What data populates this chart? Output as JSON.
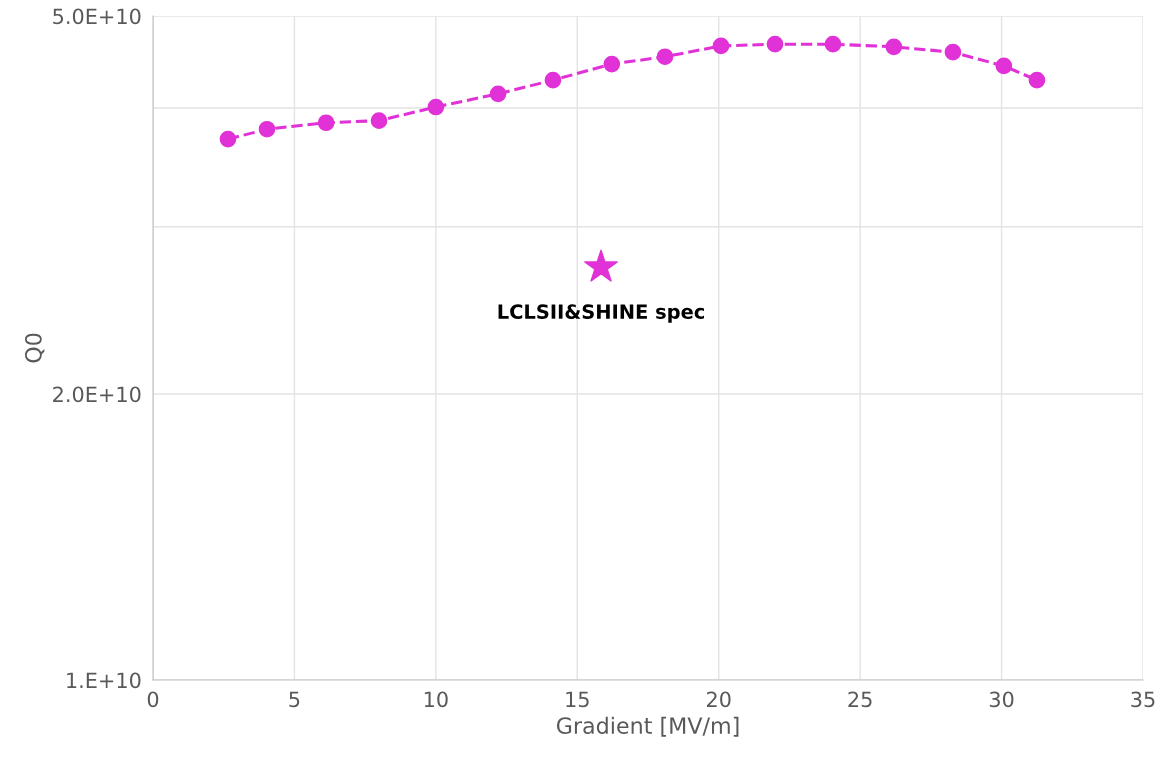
{
  "chart_data": {
    "type": "line",
    "xlabel": "Gradient [MV/m]",
    "ylabel": "Q0",
    "log": "y",
    "xlim": [
      0,
      35
    ],
    "xticks": [
      0,
      5,
      10,
      15,
      20,
      25,
      30,
      35
    ],
    "ylim": [
      10000000000.0,
      50000000000.0
    ],
    "yticks": [
      {
        "value": 10000000000.0,
        "label": "1.E+10"
      },
      {
        "value": 20000000000.0,
        "label": "2.0E+10"
      },
      {
        "value": 30000000000.0,
        "label": null
      },
      {
        "value": 40000000000.0,
        "label": null
      },
      {
        "value": 50000000000.0,
        "label": "5.0E+10"
      }
    ],
    "grid": true,
    "legend": false,
    "series": [
      {
        "color": "#e032d6",
        "marker": "circle",
        "line_style": "dashed",
        "x": [
          2.65,
          4.03,
          6.12,
          7.99,
          10.0,
          12.2,
          14.14,
          16.22,
          18.1,
          20.08,
          21.99,
          24.04,
          26.19,
          28.28,
          30.08,
          31.25
        ],
        "values": [
          37100000000.0,
          38000000000.0,
          38600000000.0,
          38800000000.0,
          40100000000.0,
          41400000000.0,
          42800000000.0,
          44500000000.0,
          45300000000.0,
          46500000000.0,
          46700000000.0,
          46700000000.0,
          46400000000.0,
          45800000000.0,
          44300000000.0,
          42800000000.0
        ]
      },
      {
        "type": "scatter",
        "name": "LCLSII&SHINE spec",
        "color": "#e032d6",
        "marker": "star",
        "x": [
          15.84
        ],
        "values": [
          27200000000.0
        ]
      }
    ]
  }
}
